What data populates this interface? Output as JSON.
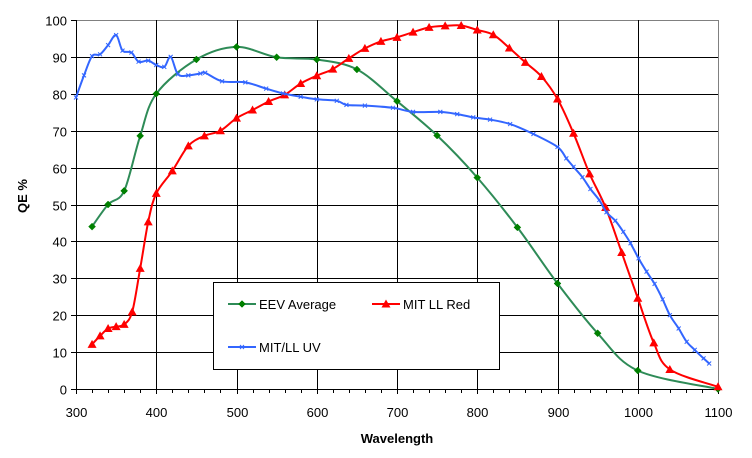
{
  "chart_data": {
    "type": "line",
    "title": "",
    "xlabel": "Wavelength",
    "ylabel": "QE %",
    "xlim": [
      300,
      1100
    ],
    "ylim": [
      0,
      100
    ],
    "x_ticks": [
      300,
      400,
      500,
      600,
      700,
      800,
      900,
      1000,
      1100
    ],
    "x_tick_labels": [
      "300",
      "400",
      "500",
      "600",
      "700",
      "800",
      "900",
      "1000",
      "1100"
    ],
    "x_minor_step": 20,
    "y_ticks": [
      0,
      10,
      20,
      30,
      40,
      50,
      60,
      70,
      80,
      90,
      100
    ],
    "y_tick_labels": [
      "0",
      "10",
      "20",
      "30",
      "40",
      "50",
      "60",
      "70",
      "80",
      "90",
      "100"
    ],
    "grid": true,
    "legend_position": "bottom-left-center",
    "series": [
      {
        "name": "EEV Average",
        "color": "#2E8B57",
        "marker_color": "#008000",
        "marker": "diamond",
        "points": [
          [
            320,
            44
          ],
          [
            340,
            50
          ],
          [
            360,
            53.7
          ],
          [
            380,
            68.6
          ],
          [
            400,
            80
          ],
          [
            450,
            89.3
          ],
          [
            500,
            92.7
          ],
          [
            550,
            89.9
          ],
          [
            600,
            89.3
          ],
          [
            650,
            86.6
          ],
          [
            700,
            78
          ],
          [
            750,
            68.7
          ],
          [
            800,
            57.3
          ],
          [
            850,
            43.8
          ],
          [
            900,
            28.6
          ],
          [
            950,
            15.1
          ],
          [
            1000,
            5
          ],
          [
            1100,
            0
          ]
        ]
      },
      {
        "name": "MIT LL Red",
        "color": "#FF0000",
        "marker_color": "#FF0000",
        "marker": "triangle",
        "points": [
          [
            320,
            12.1
          ],
          [
            330,
            14.4
          ],
          [
            340,
            16.4
          ],
          [
            350,
            16.9
          ],
          [
            360,
            17.5
          ],
          [
            370,
            20.9
          ],
          [
            380,
            32.7
          ],
          [
            390,
            45.3
          ],
          [
            400,
            53
          ],
          [
            420,
            59.1
          ],
          [
            440,
            65.9
          ],
          [
            460,
            68.6
          ],
          [
            480,
            70
          ],
          [
            500,
            73.4
          ],
          [
            520,
            75.6
          ],
          [
            540,
            77.9
          ],
          [
            560,
            79.7
          ],
          [
            580,
            82.8
          ],
          [
            600,
            84.9
          ],
          [
            620,
            86.7
          ],
          [
            640,
            89.6
          ],
          [
            660,
            92.3
          ],
          [
            680,
            94.2
          ],
          [
            700,
            95.3
          ],
          [
            720,
            96.7
          ],
          [
            740,
            98
          ],
          [
            760,
            98.4
          ],
          [
            780,
            98.5
          ],
          [
            800,
            97.3
          ],
          [
            820,
            96
          ],
          [
            840,
            92.4
          ],
          [
            860,
            88.5
          ],
          [
            880,
            84.7
          ],
          [
            900,
            78.6
          ],
          [
            920,
            69.3
          ],
          [
            940,
            58.3
          ],
          [
            960,
            49.2
          ],
          [
            980,
            37
          ],
          [
            1000,
            24.6
          ],
          [
            1020,
            12.5
          ],
          [
            1040,
            5.3
          ],
          [
            1100,
            0.6
          ]
        ]
      },
      {
        "name": "MIT/LL UV",
        "color": "#3366FF",
        "marker_color": "#3366FF",
        "marker": "x",
        "points": [
          [
            300,
            79
          ],
          [
            310,
            85
          ],
          [
            320,
            90.2
          ],
          [
            330,
            90.7
          ],
          [
            340,
            93.2
          ],
          [
            350,
            95.9
          ],
          [
            358,
            91.7
          ],
          [
            369,
            91.2
          ],
          [
            378,
            88.7
          ],
          [
            390,
            89
          ],
          [
            400,
            87.8
          ],
          [
            410,
            87.3
          ],
          [
            418,
            90
          ],
          [
            427,
            85.3
          ],
          [
            440,
            85
          ],
          [
            455,
            85.5
          ],
          [
            461,
            85.7
          ],
          [
            482,
            83.4
          ],
          [
            511,
            83.1
          ],
          [
            537,
            81.4
          ],
          [
            558,
            80.1
          ],
          [
            580,
            79.2
          ],
          [
            600,
            78.5
          ],
          [
            625,
            78.1
          ],
          [
            637,
            77
          ],
          [
            660,
            76.8
          ],
          [
            695,
            76.2
          ],
          [
            720,
            75.1
          ],
          [
            754,
            75.1
          ],
          [
            775,
            74.5
          ],
          [
            795,
            73.6
          ],
          [
            816,
            73
          ],
          [
            841,
            71.8
          ],
          [
            870,
            69.1
          ],
          [
            900,
            65.6
          ],
          [
            911,
            62.5
          ],
          [
            920,
            60.2
          ],
          [
            931,
            57.4
          ],
          [
            941,
            54.2
          ],
          [
            952,
            51.2
          ],
          [
            961,
            47.9
          ],
          [
            972,
            45.6
          ],
          [
            982,
            42.6
          ],
          [
            991,
            39.5
          ],
          [
            1001,
            35.4
          ],
          [
            1011,
            31.8
          ],
          [
            1021,
            28.5
          ],
          [
            1031,
            24.3
          ],
          [
            1040,
            20
          ],
          [
            1051,
            16.4
          ],
          [
            1061,
            12.8
          ],
          [
            1071,
            10.6
          ],
          [
            1082,
            8.3
          ],
          [
            1089,
            6.9
          ]
        ]
      }
    ]
  }
}
